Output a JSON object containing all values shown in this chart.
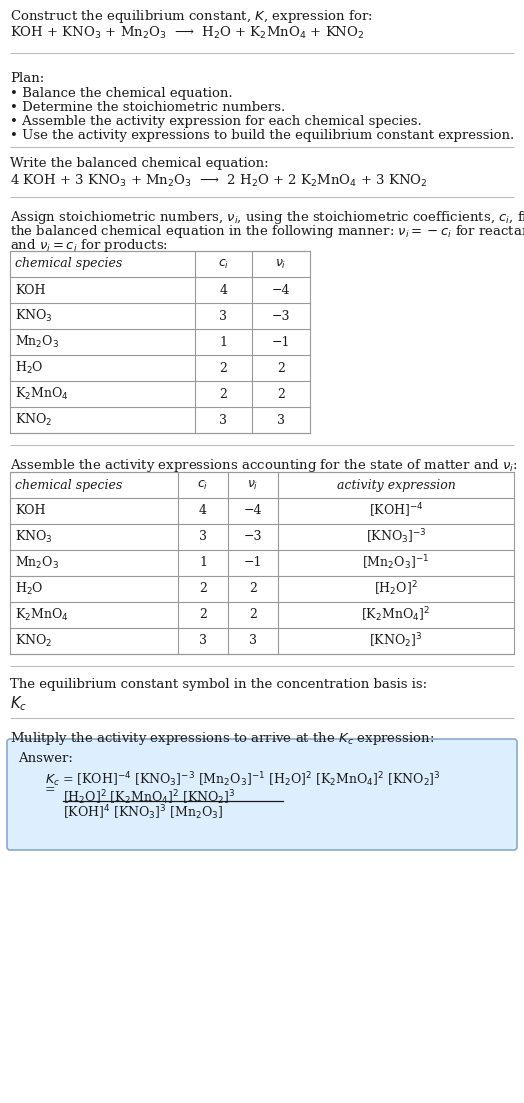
{
  "bg_color": "#ffffff",
  "text_color": "#1a1a1a",
  "title_line1": "Construct the equilibrium constant, $K$, expression for:",
  "title_line2_reactants": "KOH + KNO$_3$ + Mn$_2$O$_3$",
  "title_line2_arrow": "  ⟶  ",
  "title_line2_products": "H$_2$O + K$_2$MnO$_4$ + KNO$_2$",
  "plan_header": "Plan:",
  "plan_items": [
    "• Balance the chemical equation.",
    "• Determine the stoichiometric numbers.",
    "• Assemble the activity expression for each chemical species.",
    "• Use the activity expressions to build the equilibrium constant expression."
  ],
  "balanced_header": "Write the balanced chemical equation:",
  "balanced_eq": "4 KOH + 3 KNO$_3$ + Mn$_2$O$_3$  ⟶  2 H$_2$O + 2 K$_2$MnO$_4$ + 3 KNO$_2$",
  "stoich_intro1": "Assign stoichiometric numbers, $\\nu_i$, using the stoichiometric coefficients, $c_i$, from",
  "stoich_intro2": "the balanced chemical equation in the following manner: $\\nu_i = -c_i$ for reactants",
  "stoich_intro3": "and $\\nu_i = c_i$ for products:",
  "table1_headers": [
    "chemical species",
    "$c_i$",
    "$\\nu_i$"
  ],
  "table1_data": [
    [
      "KOH",
      "4",
      "−4"
    ],
    [
      "KNO$_3$",
      "3",
      "−3"
    ],
    [
      "Mn$_2$O$_3$",
      "1",
      "−1"
    ],
    [
      "H$_2$O",
      "2",
      "2"
    ],
    [
      "K$_2$MnO$_4$",
      "2",
      "2"
    ],
    [
      "KNO$_2$",
      "3",
      "3"
    ]
  ],
  "activity_header": "Assemble the activity expressions accounting for the state of matter and $\\nu_i$:",
  "table2_headers": [
    "chemical species",
    "$c_i$",
    "$\\nu_i$",
    "activity expression"
  ],
  "table2_data": [
    [
      "KOH",
      "4",
      "−4",
      "[KOH]$^{-4}$"
    ],
    [
      "KNO$_3$",
      "3",
      "−3",
      "[KNO$_3$]$^{-3}$"
    ],
    [
      "Mn$_2$O$_3$",
      "1",
      "−1",
      "[Mn$_2$O$_3$]$^{-1}$"
    ],
    [
      "H$_2$O",
      "2",
      "2",
      "[H$_2$O]$^2$"
    ],
    [
      "K$_2$MnO$_4$",
      "2",
      "2",
      "[K$_2$MnO$_4$]$^2$"
    ],
    [
      "KNO$_2$",
      "3",
      "3",
      "[KNO$_2$]$^3$"
    ]
  ],
  "kc_header": "The equilibrium constant symbol in the concentration basis is:",
  "kc_symbol": "$K_c$",
  "multiply_header": "Mulitply the activity expressions to arrive at the $K_c$ expression:",
  "answer_label": "Answer:",
  "answer_line1": "$K_c$ = [KOH]$^{-4}$ [KNO$_3$]$^{-3}$ [Mn$_2$O$_3$]$^{-1}$ [H$_2$O]$^2$ [K$_2$MnO$_4$]$^2$ [KNO$_2$]$^3$",
  "answer_equals": "=",
  "answer_num": "[H$_2$O]$^2$ [K$_2$MnO$_4$]$^2$ [KNO$_2$]$^3$",
  "answer_den": "[KOH]$^4$ [KNO$_3$]$^3$ [Mn$_2$O$_3$]",
  "answer_box_color": "#ddeeff",
  "answer_box_border": "#88aacc",
  "table_border_color": "#999999",
  "rule_color": "#bbbbbb",
  "font_size": 9.5,
  "font_size_small": 9.0,
  "lm": 10,
  "rm": 514
}
